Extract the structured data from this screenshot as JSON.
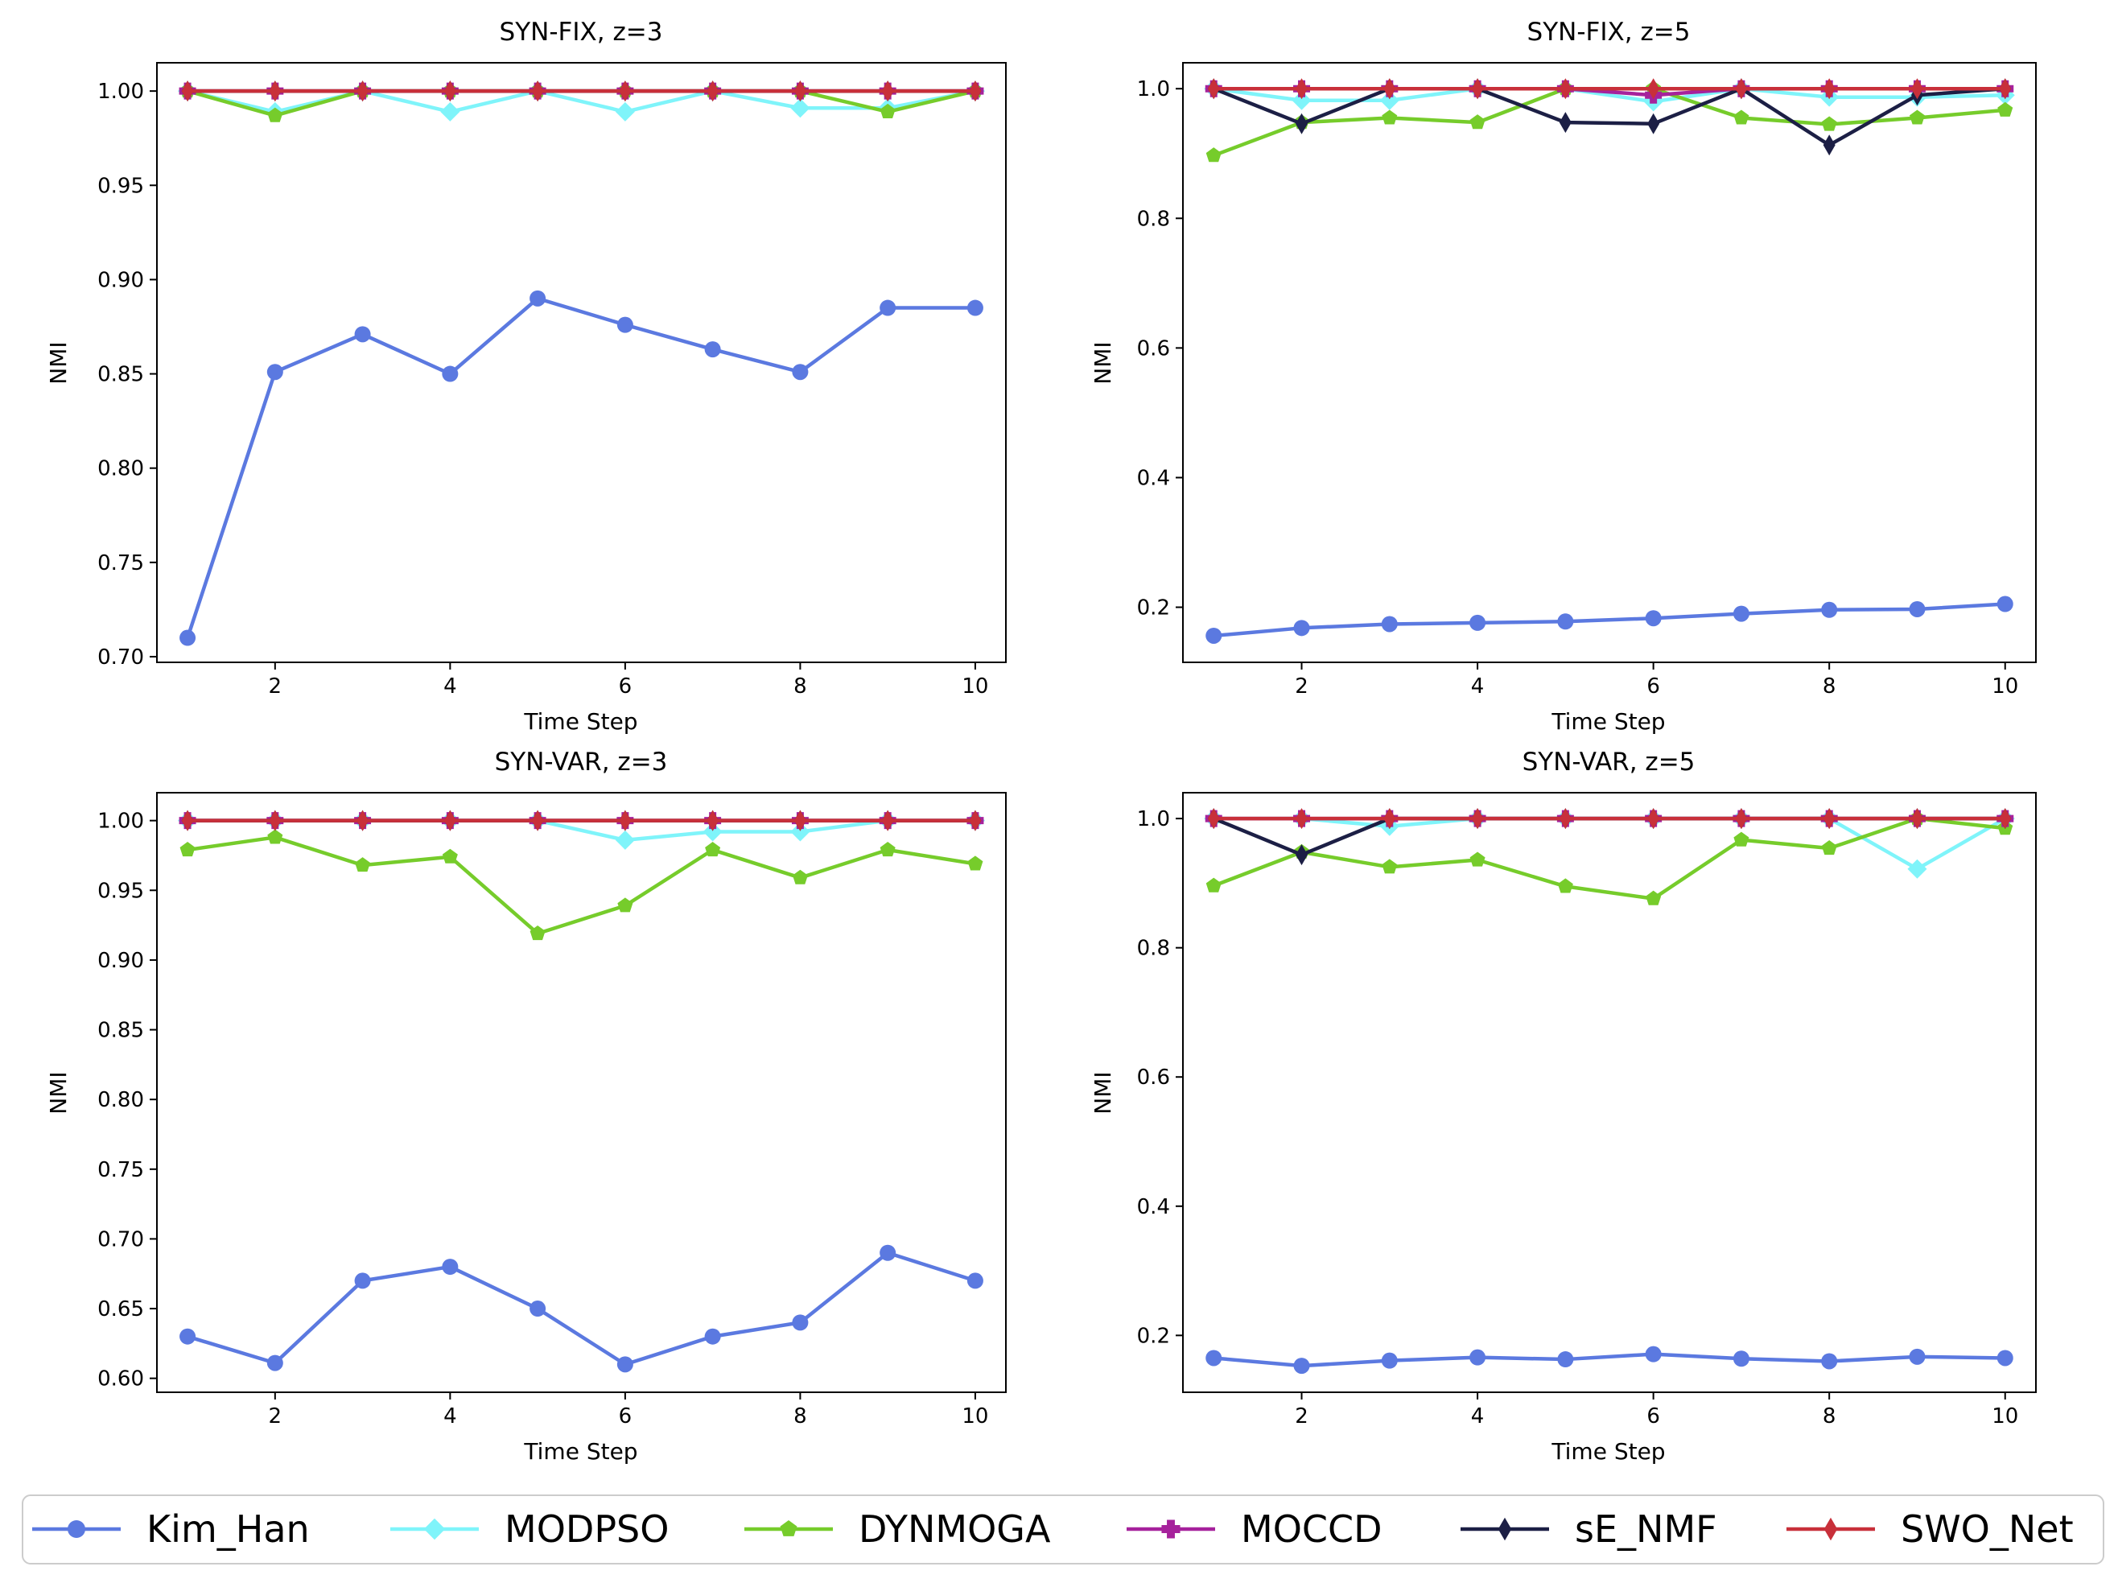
{
  "chart_data": [
    {
      "type": "line",
      "title": "SYN-FIX, z=3",
      "xlabel": "Time Step",
      "ylabel": "NMI",
      "xlim": [
        0.65,
        10.35
      ],
      "ylim": [
        0.697,
        1.015
      ],
      "xticks": [
        2,
        4,
        6,
        8,
        10
      ],
      "yticks": [
        0.7,
        0.75,
        0.8,
        0.85,
        0.9,
        0.95,
        1.0
      ],
      "ytick_labels": [
        "0.70",
        "0.75",
        "0.80",
        "0.85",
        "0.90",
        "0.95",
        "1.00"
      ],
      "x": [
        1,
        2,
        3,
        4,
        5,
        6,
        7,
        8,
        9,
        10
      ],
      "series": [
        {
          "name": "Kim_Han",
          "values": [
            0.71,
            0.851,
            0.871,
            0.85,
            0.89,
            0.876,
            0.863,
            0.851,
            0.885,
            0.885
          ]
        },
        {
          "name": "MODPSO",
          "values": [
            1.0,
            0.989,
            1.0,
            0.989,
            1.0,
            0.989,
            1.0,
            0.991,
            0.991,
            1.0
          ]
        },
        {
          "name": "DYNMOGA",
          "values": [
            1.0,
            0.987,
            1.0,
            1.0,
            1.0,
            1.0,
            1.0,
            1.0,
            0.989,
            1.0
          ]
        },
        {
          "name": "MOCCD",
          "values": [
            1.0,
            1.0,
            1.0,
            1.0,
            1.0,
            1.0,
            1.0,
            1.0,
            1.0,
            1.0
          ]
        },
        {
          "name": "sE_NMF",
          "values": [
            1.0,
            1.0,
            1.0,
            1.0,
            1.0,
            1.0,
            1.0,
            1.0,
            1.0,
            1.0
          ]
        },
        {
          "name": "SWO_Net",
          "values": [
            1.0,
            1.0,
            1.0,
            1.0,
            1.0,
            1.0,
            1.0,
            1.0,
            1.0,
            1.0
          ]
        }
      ]
    },
    {
      "type": "line",
      "title": "SYN-FIX, z=5",
      "xlabel": "Time Step",
      "ylabel": "NMI",
      "xlim": [
        0.65,
        10.35
      ],
      "ylim": [
        0.115,
        1.04
      ],
      "xticks": [
        2,
        4,
        6,
        8,
        10
      ],
      "yticks": [
        0.2,
        0.4,
        0.6,
        0.8,
        1.0
      ],
      "ytick_labels": [
        "0.2",
        "0.4",
        "0.6",
        "0.8",
        "1.0"
      ],
      "x": [
        1,
        2,
        3,
        4,
        5,
        6,
        7,
        8,
        9,
        10
      ],
      "series": [
        {
          "name": "Kim_Han",
          "values": [
            0.156,
            0.168,
            0.174,
            0.176,
            0.178,
            0.183,
            0.19,
            0.196,
            0.197,
            0.205
          ]
        },
        {
          "name": "MODPSO",
          "values": [
            1.0,
            0.982,
            0.982,
            1.0,
            1.0,
            0.98,
            1.0,
            0.987,
            0.987,
            0.99
          ]
        },
        {
          "name": "DYNMOGA",
          "values": [
            0.897,
            0.948,
            0.955,
            0.948,
            1.0,
            1.0,
            0.955,
            0.945,
            0.955,
            0.967
          ]
        },
        {
          "name": "MOCCD",
          "values": [
            1.0,
            1.0,
            1.0,
            1.0,
            1.0,
            0.99,
            1.0,
            1.0,
            1.0,
            1.0
          ]
        },
        {
          "name": "sE_NMF",
          "values": [
            1.0,
            0.946,
            1.0,
            1.0,
            0.948,
            0.946,
            1.0,
            0.913,
            0.99,
            1.0
          ]
        },
        {
          "name": "SWO_Net",
          "values": [
            1.0,
            1.0,
            1.0,
            1.0,
            1.0,
            1.0,
            1.0,
            1.0,
            1.0,
            1.0
          ]
        }
      ]
    },
    {
      "type": "line",
      "title": "SYN-VAR, z=3",
      "xlabel": "Time Step",
      "ylabel": "NMI",
      "xlim": [
        0.65,
        10.35
      ],
      "ylim": [
        0.59,
        1.02
      ],
      "xticks": [
        2,
        4,
        6,
        8,
        10
      ],
      "yticks": [
        0.6,
        0.65,
        0.7,
        0.75,
        0.8,
        0.85,
        0.9,
        0.95,
        1.0
      ],
      "ytick_labels": [
        "0.60",
        "0.65",
        "0.70",
        "0.75",
        "0.80",
        "0.85",
        "0.90",
        "0.95",
        "1.00"
      ],
      "x": [
        1,
        2,
        3,
        4,
        5,
        6,
        7,
        8,
        9,
        10
      ],
      "series": [
        {
          "name": "Kim_Han",
          "values": [
            0.63,
            0.611,
            0.67,
            0.68,
            0.65,
            0.61,
            0.63,
            0.64,
            0.69,
            0.67
          ]
        },
        {
          "name": "MODPSO",
          "values": [
            1.0,
            1.0,
            1.0,
            1.0,
            1.0,
            0.986,
            0.992,
            0.992,
            1.0,
            1.0
          ]
        },
        {
          "name": "DYNMOGA",
          "values": [
            0.979,
            0.988,
            0.968,
            0.974,
            0.919,
            0.939,
            0.979,
            0.959,
            0.979,
            0.969
          ]
        },
        {
          "name": "MOCCD",
          "values": [
            1.0,
            1.0,
            1.0,
            1.0,
            1.0,
            1.0,
            1.0,
            1.0,
            1.0,
            1.0
          ]
        },
        {
          "name": "sE_NMF",
          "values": [
            1.0,
            1.0,
            1.0,
            1.0,
            1.0,
            1.0,
            1.0,
            1.0,
            1.0,
            1.0
          ]
        },
        {
          "name": "SWO_Net",
          "values": [
            1.0,
            1.0,
            1.0,
            1.0,
            1.0,
            1.0,
            1.0,
            1.0,
            1.0,
            1.0
          ]
        }
      ]
    },
    {
      "type": "line",
      "title": "SYN-VAR, z=5",
      "xlabel": "Time Step",
      "ylabel": "NMI",
      "xlim": [
        0.65,
        10.35
      ],
      "ylim": [
        0.112,
        1.04
      ],
      "xticks": [
        2,
        4,
        6,
        8,
        10
      ],
      "yticks": [
        0.2,
        0.4,
        0.6,
        0.8,
        1.0
      ],
      "ytick_labels": [
        "0.2",
        "0.4",
        "0.6",
        "0.8",
        "1.0"
      ],
      "x": [
        1,
        2,
        3,
        4,
        5,
        6,
        7,
        8,
        9,
        10
      ],
      "series": [
        {
          "name": "Kim_Han",
          "values": [
            0.165,
            0.153,
            0.161,
            0.166,
            0.163,
            0.171,
            0.164,
            0.16,
            0.167,
            0.165
          ]
        },
        {
          "name": "MODPSO",
          "values": [
            1.0,
            1.0,
            0.988,
            1.0,
            1.0,
            1.0,
            1.0,
            1.0,
            0.922,
            1.0
          ]
        },
        {
          "name": "DYNMOGA",
          "values": [
            0.896,
            0.948,
            0.925,
            0.936,
            0.895,
            0.876,
            0.967,
            0.954,
            1.0,
            0.985
          ]
        },
        {
          "name": "MOCCD",
          "values": [
            1.0,
            1.0,
            1.0,
            1.0,
            1.0,
            1.0,
            1.0,
            1.0,
            1.0,
            1.0
          ]
        },
        {
          "name": "sE_NMF",
          "values": [
            1.0,
            0.944,
            1.0,
            1.0,
            1.0,
            1.0,
            1.0,
            1.0,
            1.0,
            1.0
          ]
        },
        {
          "name": "SWO_Net",
          "values": [
            1.0,
            1.0,
            1.0,
            1.0,
            1.0,
            1.0,
            1.0,
            1.0,
            1.0,
            1.0
          ]
        }
      ]
    }
  ],
  "legend": {
    "position": "bottom",
    "entries": [
      {
        "name": "Kim_Han",
        "color": "#5b79e0",
        "marker": "circle"
      },
      {
        "name": "MODPSO",
        "color": "#7ff4fa",
        "marker": "diamond"
      },
      {
        "name": "DYNMOGA",
        "color": "#76cc2b",
        "marker": "pentagon"
      },
      {
        "name": "MOCCD",
        "color": "#a6229c",
        "marker": "plus"
      },
      {
        "name": "sE_NMF",
        "color": "#1c1f45",
        "marker": "thin-diamond"
      },
      {
        "name": "SWO_Net",
        "color": "#c8303a",
        "marker": "thin-diamond"
      }
    ]
  }
}
